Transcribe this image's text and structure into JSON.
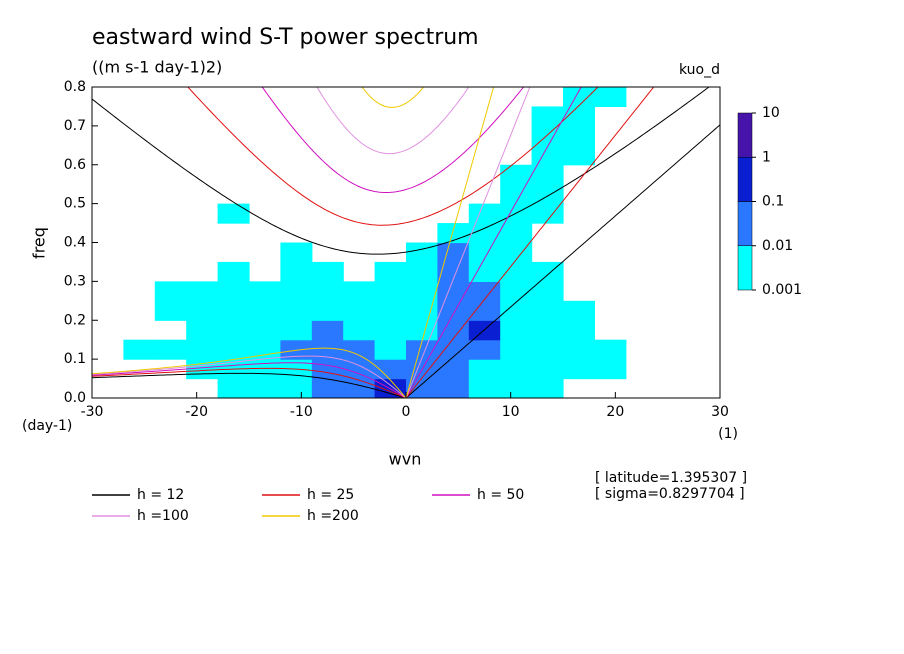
{
  "chart_data": {
    "type": "contour",
    "title": "eastward wind S-T power spectrum",
    "subtitle": "((m s-1 day-1)2)",
    "corner_label": "kuo_d",
    "x_label": "wvn",
    "y_label": "freq",
    "y_unit": "(day-1)",
    "x_unit": "(1)",
    "annotations": [
      "[ latitude=1.395307 ]",
      "[ sigma=0.8297704 ]"
    ],
    "xlim": [
      -30,
      30
    ],
    "xticks": [
      -30,
      -20,
      -10,
      0,
      10,
      20,
      30
    ],
    "ylim": [
      0,
      0.8
    ],
    "yticks": [
      {
        "value": 0,
        "label": "0.0"
      },
      0.1,
      0.2,
      0.3,
      0.4,
      0.5,
      0.6,
      0.7,
      0.8
    ],
    "levels": [
      0.001,
      0.01,
      0.1,
      1,
      10
    ],
    "level_colors": [
      "#00ffff",
      "#2a78ff",
      "#0a1ed2",
      "#4614aa"
    ],
    "x_edges": [
      -30,
      -27,
      -24,
      -21,
      -18,
      -15,
      -12,
      -9,
      -6,
      -3,
      0,
      3,
      6,
      9,
      12,
      15,
      18,
      21,
      24,
      27,
      30
    ],
    "y_edges": [
      0,
      0.05,
      0.1,
      0.15,
      0.2,
      0.25,
      0.3,
      0.35,
      0.4,
      0.45,
      0.5,
      0.55,
      0.6,
      0.65,
      0.7,
      0.75,
      0.8
    ],
    "z": [
      [
        null,
        null,
        null,
        null,
        0.005,
        0.005,
        0.005,
        0.05,
        0.05,
        0.5,
        0.05,
        0.05,
        0.005,
        0.005,
        0.005,
        null,
        null,
        null,
        null,
        null
      ],
      [
        null,
        null,
        null,
        0.005,
        0.005,
        0.005,
        0.005,
        0.05,
        0.05,
        0.05,
        0.05,
        0.05,
        0.005,
        0.005,
        0.005,
        0.005,
        0.005,
        null,
        null,
        null
      ],
      [
        null,
        0.005,
        0.005,
        0.005,
        0.005,
        0.005,
        0.05,
        0.05,
        0.05,
        0.005,
        0.05,
        0.05,
        0.05,
        0.005,
        0.005,
        0.005,
        0.005,
        null,
        null,
        null
      ],
      [
        null,
        null,
        null,
        0.005,
        0.005,
        0.005,
        0.005,
        0.05,
        0.005,
        0.005,
        0.005,
        0.05,
        0.5,
        0.005,
        0.005,
        0.005,
        null,
        null,
        null,
        null
      ],
      [
        null,
        null,
        0.005,
        0.005,
        0.005,
        0.005,
        0.005,
        0.005,
        0.005,
        0.005,
        0.005,
        0.05,
        0.05,
        0.005,
        0.005,
        0.005,
        null,
        null,
        null,
        null
      ],
      [
        null,
        null,
        0.005,
        0.005,
        0.005,
        0.005,
        0.005,
        0.005,
        0.005,
        0.005,
        0.005,
        0.05,
        0.05,
        0.005,
        0.005,
        null,
        null,
        null,
        null,
        null
      ],
      [
        null,
        null,
        null,
        null,
        0.005,
        null,
        0.005,
        0.005,
        null,
        0.005,
        0.005,
        0.05,
        0.005,
        0.005,
        0.005,
        null,
        null,
        null,
        null,
        null
      ],
      [
        null,
        null,
        null,
        null,
        null,
        null,
        0.005,
        null,
        null,
        null,
        0.005,
        0.05,
        0.005,
        0.005,
        null,
        null,
        null,
        null,
        null,
        null
      ],
      [
        null,
        null,
        null,
        null,
        null,
        null,
        null,
        null,
        null,
        null,
        null,
        0.005,
        0.005,
        0.005,
        null,
        null,
        null,
        null,
        null,
        null
      ],
      [
        null,
        null,
        null,
        null,
        0.005,
        null,
        null,
        null,
        null,
        null,
        null,
        null,
        0.005,
        0.005,
        0.005,
        null,
        null,
        null,
        null,
        null
      ],
      [
        null,
        null,
        null,
        null,
        null,
        null,
        null,
        null,
        null,
        null,
        null,
        null,
        null,
        0.005,
        0.005,
        null,
        null,
        null,
        null,
        null
      ],
      [
        null,
        null,
        null,
        null,
        null,
        null,
        null,
        null,
        null,
        null,
        null,
        null,
        null,
        0.005,
        0.005,
        null,
        null,
        null,
        null,
        null
      ],
      [
        null,
        null,
        null,
        null,
        null,
        null,
        null,
        null,
        null,
        null,
        null,
        null,
        null,
        null,
        0.005,
        0.005,
        null,
        null,
        null,
        null
      ],
      [
        null,
        null,
        null,
        null,
        null,
        null,
        null,
        null,
        null,
        null,
        null,
        null,
        null,
        null,
        0.005,
        0.005,
        null,
        null,
        null,
        null
      ],
      [
        null,
        null,
        null,
        null,
        null,
        null,
        null,
        null,
        null,
        null,
        null,
        null,
        null,
        null,
        0.005,
        0.005,
        null,
        null,
        null,
        null
      ],
      [
        null,
        null,
        null,
        null,
        null,
        null,
        null,
        null,
        null,
        null,
        null,
        null,
        null,
        null,
        null,
        0.005,
        0.005,
        null,
        null,
        null
      ]
    ],
    "series": [
      {
        "name": "h = 12",
        "h": 12,
        "color": "#000000"
      },
      {
        "name": "h = 25",
        "h": 25,
        "color": "#e01010"
      },
      {
        "name": "h = 50",
        "h": 50,
        "color": "#d010c0"
      },
      {
        "name": "h =100",
        "h": 100,
        "color": "#e090e0"
      },
      {
        "name": "h =200",
        "h": 200,
        "color": "#f0c800"
      }
    ]
  }
}
